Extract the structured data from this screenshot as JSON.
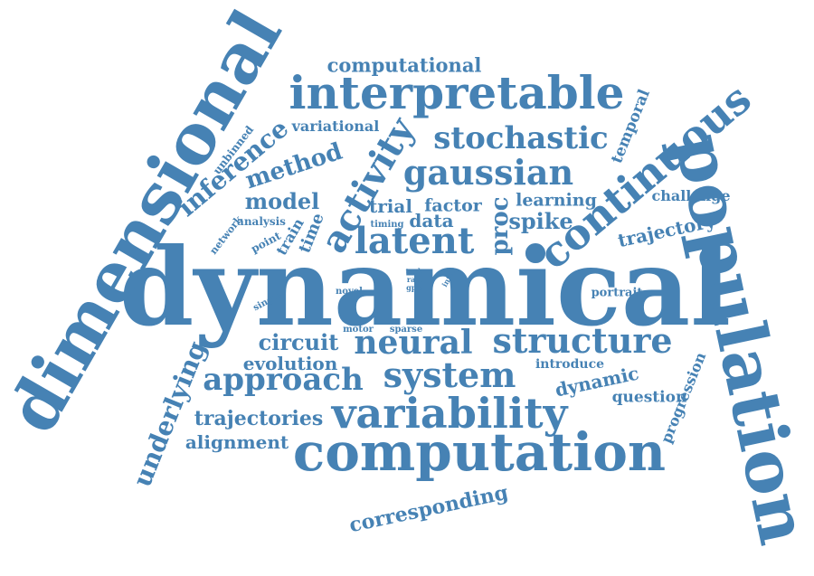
{
  "accent_color": "#4682b4",
  "background_color": "#ffffff",
  "words": {
    "dynamical": "dynamical",
    "dimensional": "dimensional",
    "population": "population",
    "computation": "computation",
    "interpretable": "interpretable",
    "variability": "variability",
    "continuous": "continuous",
    "latent": "latent",
    "neural": "neural",
    "structure": "structure",
    "system": "system",
    "approach": "approach",
    "gaussian": "gaussian",
    "stochastic": "stochastic",
    "activity": "activity",
    "inference": "inference",
    "underlying": "underlying",
    "method": "method",
    "trajectories": "trajectories",
    "computational": "computational",
    "corresponding": "corresponding",
    "circuit": "circuit",
    "evolution": "evolution",
    "alignment": "alignment",
    "model": "model",
    "trajectory": "trajectory",
    "dynamic": "dynamic",
    "spike": "spike",
    "data": "data",
    "trial": "trial",
    "factor": "factor",
    "learning": "learning",
    "proc": "proc",
    "challenge": "challenge",
    "temporal": "temporal",
    "question": "question",
    "progression": "progression",
    "variational": "variational",
    "introduce": "introduce",
    "portrait": "portrait",
    "time": "time",
    "train": "train",
    "analysis": "analysis",
    "point": "point",
    "unbinned": "unbinned",
    "network": "network",
    "timing": "timing",
    "sparse": "sparse",
    "motor": "motor",
    "novel": "novel",
    "single": "single",
    "task": "task",
    "rate": "rate",
    "gpfa": "gpfa",
    "inter": "inter"
  }
}
